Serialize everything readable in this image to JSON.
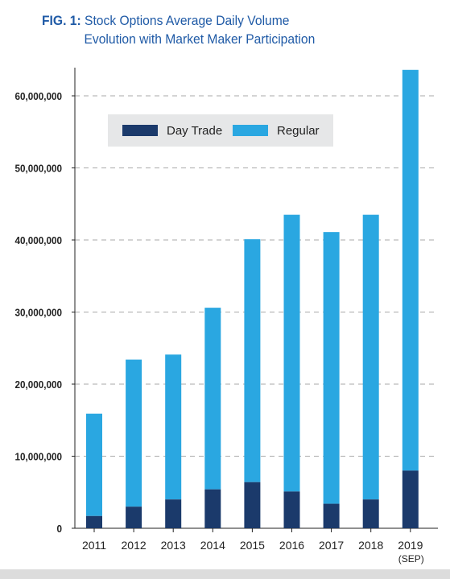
{
  "figure": {
    "label": "FIG. 1:",
    "title_line1": "Stock Options Average Daily Volume",
    "title_line2": "Evolution with Market Maker Participation"
  },
  "colors": {
    "title": "#1f5aa6",
    "day_trade": "#1b3a6b",
    "regular": "#2aa7e1",
    "legend_bg": "#e6e7e8",
    "grid": "#aaaaaa"
  },
  "chart_data": {
    "type": "bar",
    "stacked": true,
    "categories": [
      "2011",
      "2012",
      "2013",
      "2014",
      "2015",
      "2016",
      "2017",
      "2018",
      "2019"
    ],
    "category_sublabels": [
      "",
      "",
      "",
      "",
      "",
      "",
      "",
      "",
      "(SEP)"
    ],
    "series": [
      {
        "name": "Day Trade",
        "values": [
          1700000,
          3000000,
          4000000,
          5400000,
          6400000,
          5100000,
          3400000,
          4000000,
          8000000
        ]
      },
      {
        "name": "Regular",
        "values": [
          14200000,
          20400000,
          20100000,
          25200000,
          33700000,
          38400000,
          37700000,
          39500000,
          55600000
        ]
      }
    ],
    "y_ticks": [
      0,
      10000000,
      20000000,
      30000000,
      40000000,
      50000000,
      60000000
    ],
    "y_tick_labels": [
      "0",
      "10,000,000",
      "20,000,000",
      "30,000,000",
      "40,000,000",
      "50,000,000",
      "60,000,000"
    ],
    "ylim": [
      0,
      64000000
    ],
    "grid": "horizontal-dashed",
    "legend_position": "top-left",
    "xlabel": "",
    "ylabel": ""
  }
}
